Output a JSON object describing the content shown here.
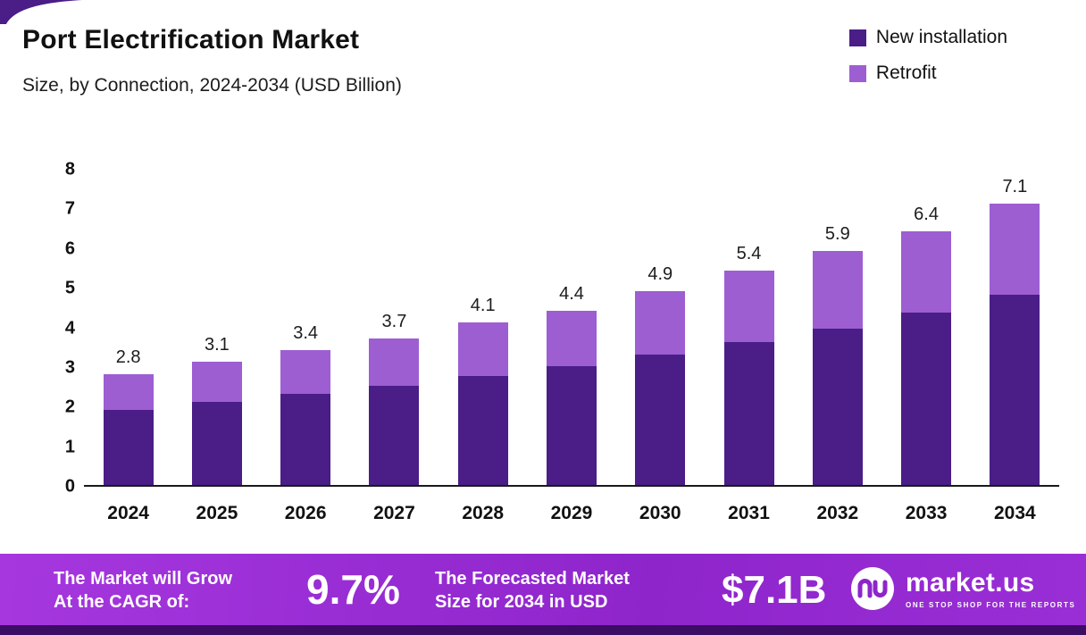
{
  "header": {
    "title": "Port Electrification Market",
    "subtitle": "Size, by Connection, 2024-2034 (USD Billion)"
  },
  "legend": [
    {
      "label": "New installation",
      "color": "#4a1d87"
    },
    {
      "label": "Retrofit",
      "color": "#9d5ed2"
    }
  ],
  "chart_data": {
    "type": "bar",
    "stacked": true,
    "title": "Port Electrification Market",
    "subtitle": "Size, by Connection, 2024-2034 (USD Billion)",
    "categories": [
      "2024",
      "2025",
      "2026",
      "2027",
      "2028",
      "2029",
      "2030",
      "2031",
      "2032",
      "2033",
      "2034"
    ],
    "series": [
      {
        "name": "New installation",
        "color": "#4a1d87",
        "values": [
          1.9,
          2.1,
          2.3,
          2.5,
          2.75,
          3.0,
          3.3,
          3.6,
          3.95,
          4.35,
          4.8
        ]
      },
      {
        "name": "Retrofit",
        "color": "#9d5ed2",
        "values": [
          0.9,
          1.0,
          1.1,
          1.2,
          1.35,
          1.4,
          1.6,
          1.8,
          1.95,
          2.05,
          2.3
        ]
      }
    ],
    "totals": [
      2.8,
      3.1,
      3.4,
      3.7,
      4.1,
      4.4,
      4.9,
      5.4,
      5.9,
      6.4,
      7.1
    ],
    "total_labels": [
      "2.8",
      "3.1",
      "3.4",
      "3.7",
      "4.1",
      "4.4",
      "4.9",
      "5.4",
      "5.9",
      "6.4",
      "7.1"
    ],
    "xlabel": "",
    "ylabel": "",
    "ylim": [
      0,
      8
    ],
    "yticks": [
      0,
      1,
      2,
      3,
      4,
      5,
      6,
      7,
      8
    ],
    "grid": false,
    "legend_position": "top-right"
  },
  "banner": {
    "cagr_line1": "The Market will Grow",
    "cagr_line2": "At the CAGR of:",
    "cagr_value": "9.7%",
    "forecast_line1": "The Forecasted Market",
    "forecast_line2": "Size for 2034 in USD",
    "forecast_value": "$7.1B",
    "brand": "market.us",
    "brand_tagline": "ONE STOP SHOP FOR THE REPORTS",
    "banner_color": "#9a2ed6",
    "strip_color": "#3b0d63"
  }
}
